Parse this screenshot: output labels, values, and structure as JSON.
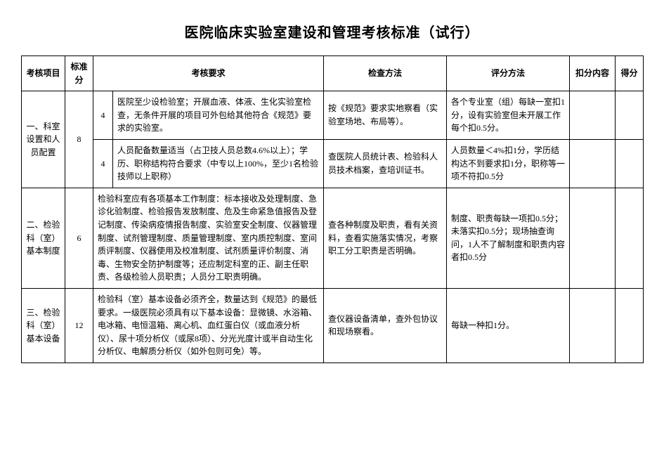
{
  "title": "医院临床实验室建设和管理考核标准（试行）",
  "headers": {
    "project": "考核项目",
    "score": "标准分",
    "requirement": "考核要求",
    "method": "检查方法",
    "evaluation": "评分方法",
    "deduction": "扣分内容",
    "result": "得分"
  },
  "rows": [
    {
      "project": "一、科室设置和人员配置",
      "score": "8",
      "subs": [
        {
          "sub_score": "4",
          "requirement": "医院至少设检验室；开展血液、体液、生化实验室检查，无条件开展的项目可外包给其他符合《规范》要求的实验室。",
          "method": "按《规范》要求实地察看（实验室场地、布局等）。",
          "evaluation": "各个专业室（组）每缺一室扣1分，设有实验室但未开展工作每个扣0.5分。"
        },
        {
          "sub_score": "4",
          "requirement": "人员配备数量适当（占卫技人员总数4.6%以上）；学历、职称结构符合要求（中专以上100%，至少1名检验技师以上职称）",
          "method": "查医院人员统计表、检验科人员技术档案，查培训证书。",
          "evaluation": "人员数量＜4%扣1分，学历结构达不到要求扣1分，职称等一项不符扣0.5分"
        }
      ]
    },
    {
      "project": "二、检验科（室）基本制度",
      "score": "6",
      "subs": [
        {
          "sub_score": "",
          "requirement": "检验科室应有各项基本工作制度：标本接收及处理制度、急诊化验制度、检验报告发放制度、危及生命紧急值报告及登记制度、传染病疫情报告制度、实验室安全制度、仪器管理制度、试剂管理制度、质量管理制度、室内质控制度、室间质评制度、仪器使用及校准制度、试剂质量评价制度、消毒、生物安全防护制度等；还应制定科室的正、副主任职责、各级检验人员职责；人员分工职责明确。",
          "method": "查各种制度及职责，看有关资料，查看实施落实情况，考察职工分工职责是否明确。",
          "evaluation": "制度、职责每缺一项扣0.5分；未落实扣0.5分；现场抽查询问，1人不了解制度和职责内容者扣0.5分"
        }
      ]
    },
    {
      "project": "三、检验科（室）基本设备",
      "score": "12",
      "subs": [
        {
          "sub_score": "",
          "requirement": "检验科（室）基本设备必须齐全，数量达到《规范》的最低要求。一级医院必须具有以下基本设备：显微镜、水浴箱、电冰箱、电恒温箱、离心机、血红蛋白仪（或血液分析仪）、尿十项分析仪（或尿8项）、分光光度计或半自动生化分析仪、电解质分析仪（如外包则可免）等。",
          "method": "查仪器设备清单，查外包协议和现场察看。",
          "evaluation": "每缺一种扣1分。"
        }
      ]
    }
  ]
}
